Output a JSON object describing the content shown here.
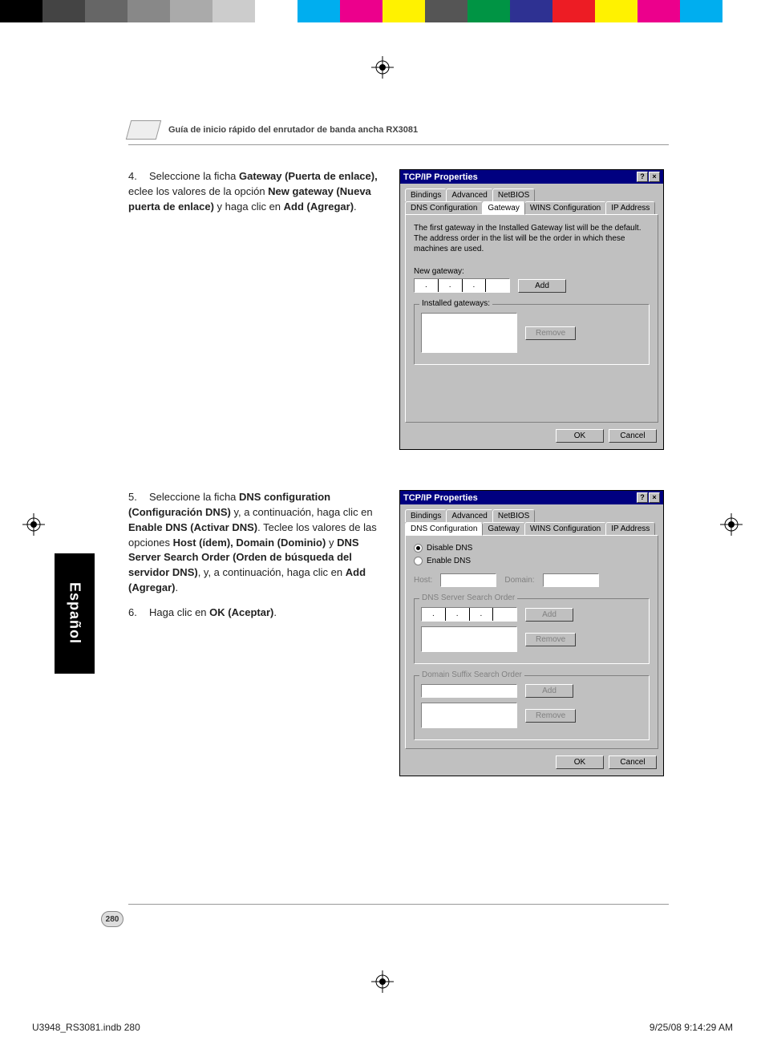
{
  "colorbar": [
    "#000000",
    "#444444",
    "#666666",
    "#888888",
    "#aaaaaa",
    "#cccccc",
    "#ffffff",
    "#00aeef",
    "#ec008c",
    "#fff200",
    "#555555",
    "#009444",
    "#2e3192",
    "#ed1c24",
    "#fff200",
    "#ec008c",
    "#00aeef",
    "#ffffff"
  ],
  "header": {
    "title": "Guía de inicio rápido del enrutador de banda ancha RX3081"
  },
  "step4": {
    "num": "4.",
    "parts": [
      {
        "t": "Seleccione la ficha ",
        "b": false
      },
      {
        "t": "Gateway (Puerta de enlace),",
        "b": true
      },
      {
        "t": " eclee los valores de la opción ",
        "b": false
      },
      {
        "t": "New gateway (Nueva puerta de enlace)",
        "b": true
      },
      {
        "t": " y haga clic en ",
        "b": false
      },
      {
        "t": "Add (Agregar)",
        "b": true
      },
      {
        "t": ".",
        "b": false
      }
    ]
  },
  "step5": {
    "num": "5.",
    "parts": [
      {
        "t": "Seleccione la ficha ",
        "b": false
      },
      {
        "t": "DNS configuration (Configuración DNS)",
        "b": true
      },
      {
        "t": " y, a continuación, haga clic en ",
        "b": false
      },
      {
        "t": "Enable DNS (Activar DNS)",
        "b": true
      },
      {
        "t": ". Teclee los valores de las opciones ",
        "b": false
      },
      {
        "t": "Host (ídem), Domain (Dominio)",
        "b": true
      },
      {
        "t": " y ",
        "b": false
      },
      {
        "t": "DNS Server Search Order (Orden de búsqueda del servidor DNS)",
        "b": true
      },
      {
        "t": ", y, a continuación, haga clic en ",
        "b": false
      },
      {
        "t": "Add (Agregar)",
        "b": true
      },
      {
        "t": ".",
        "b": false
      }
    ]
  },
  "step6": {
    "num": "6.",
    "parts": [
      {
        "t": "Haga clic en ",
        "b": false
      },
      {
        "t": "OK (Aceptar)",
        "b": true
      },
      {
        "t": ".",
        "b": false
      }
    ]
  },
  "dialog1": {
    "title": "TCP/IP Properties",
    "help": "?",
    "close": "×",
    "tabs_row1": [
      "Bindings",
      "Advanced",
      "NetBIOS"
    ],
    "tabs_row2": [
      "DNS Configuration",
      "Gateway",
      "WINS Configuration",
      "IP Address"
    ],
    "active_tab": "Gateway",
    "desc": "The first gateway in the Installed Gateway list will be the default. The address order in the list will be the order in which these machines are used.",
    "newgw_label": "New gateway:",
    "add": "Add",
    "installed_label": "Installed gateways:",
    "remove": "Remove",
    "ok": "OK",
    "cancel": "Cancel"
  },
  "dialog2": {
    "title": "TCP/IP Properties",
    "help": "?",
    "close": "×",
    "tabs_row1": [
      "Bindings",
      "Advanced",
      "NetBIOS"
    ],
    "tabs_row2": [
      "DNS Configuration",
      "Gateway",
      "WINS Configuration",
      "IP Address"
    ],
    "active_tab": "DNS Configuration",
    "disable": "Disable DNS",
    "enable": "Enable DNS",
    "host": "Host:",
    "domain": "Domain:",
    "dns_order": "DNS Server Search Order",
    "suffix_order": "Domain Suffix Search Order",
    "add": "Add",
    "remove": "Remove",
    "ok": "OK",
    "cancel": "Cancel"
  },
  "langtab": "Español",
  "pagenum": "280",
  "footer": {
    "left": "U3948_RS3081.indb   280",
    "right": "9/25/08   9:14:29 AM"
  }
}
